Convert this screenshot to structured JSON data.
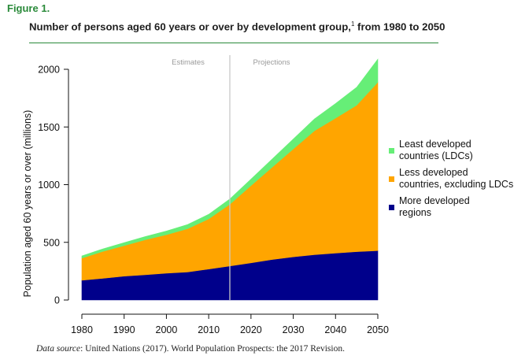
{
  "figure_label": "Figure 1.",
  "title": "Number of persons aged 60 years or over by development group,",
  "title_footnote": "1",
  "title_suffix": " from 1980 to 2050",
  "source_prefix": "Data source",
  "source_text": ": United Nations (2017). World Population Prospects: the 2017 Revision.",
  "colors": {
    "ldc": "#66ee77",
    "less_developed": "#ffa500",
    "more_developed": "#00008b",
    "accent": "#2a8a3a",
    "divider": "#c8c8c8"
  },
  "chart_data": {
    "type": "area",
    "stacked": true,
    "title": "Number of persons aged 60 years or over by development group, from 1980 to 2050",
    "xlabel": "",
    "ylabel": "Population aged 60 years or over (millions)",
    "x": [
      1980,
      1985,
      1990,
      1995,
      2000,
      2005,
      2010,
      2015,
      2020,
      2025,
      2030,
      2035,
      2040,
      2045,
      2050
    ],
    "xlim": [
      1980,
      2050
    ],
    "ylim": [
      0,
      2100
    ],
    "xticks": [
      "1980",
      "1990",
      "2000",
      "2010",
      "2020",
      "2030",
      "2040",
      "2050"
    ],
    "yticks": [
      "0",
      "500",
      "1000",
      "1500",
      "2000"
    ],
    "divider_year": 2015,
    "period_labels": [
      "Estimates",
      "Projections"
    ],
    "legend_position": "right",
    "series": [
      {
        "name": "More developed regions",
        "legend": [
          "More developed",
          "regions"
        ],
        "values": [
          171,
          188,
          207,
          219,
          233,
          243,
          268,
          295,
          322,
          351,
          374,
          393,
          407,
          419,
          428
        ]
      },
      {
        "name": "Less developed countries, excluding LDCs",
        "legend": [
          "Less developed",
          "countries, excluding LDCs"
        ],
        "values": [
          192,
          234,
          265,
          303,
          333,
          375,
          435,
          535,
          670,
          800,
          935,
          1074,
          1170,
          1270,
          1460
        ]
      },
      {
        "name": "Least developed countries (LDCs)",
        "legend": [
          "Least developed",
          "countries (LDCs)"
        ],
        "values": [
          19,
          22,
          25,
          28,
          32,
          36,
          40,
          46,
          56,
          70,
          86,
          102,
          126,
          155,
          200
        ]
      }
    ]
  }
}
